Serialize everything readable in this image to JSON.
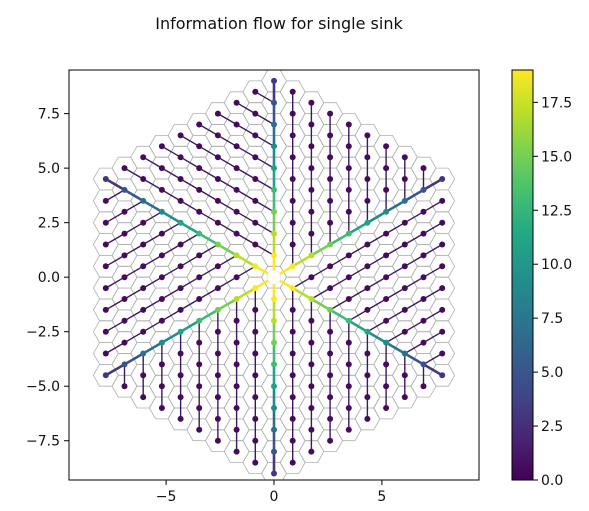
{
  "chart_data": {
    "type": "scatter",
    "title": "Information flow for single sink",
    "xlabel": "",
    "ylabel": "",
    "xlim": [
      -9.5,
      9.5
    ],
    "ylim": [
      -9.3,
      9.5
    ],
    "xticks": [
      -5,
      0,
      5
    ],
    "xtick_labels": [
      "−5",
      "0",
      "5"
    ],
    "yticks": [
      -7.5,
      -5.0,
      -2.5,
      0.0,
      2.5,
      5.0,
      7.5
    ],
    "ytick_labels": [
      "−7.5",
      "−5.0",
      "−2.5",
      "0.0",
      "2.5",
      "5.0",
      "7.5"
    ],
    "grid": false,
    "description_elements": "hexagonal lattice of nodes (radius 9) with edges pointing toward a single sink at the origin; color encodes information flow",
    "sink": [
      0,
      0
    ],
    "hex_radius": 9,
    "colormap": "viridis",
    "colorbar": {
      "min": 0.0,
      "max": 19.0,
      "ticks": [
        0.0,
        2.5,
        5.0,
        7.5,
        10.0,
        12.5,
        15.0,
        17.5
      ],
      "tick_labels": [
        "0.0",
        "2.5",
        "5.0",
        "7.5",
        "10.0",
        "12.5",
        "15.0",
        "17.5"
      ]
    },
    "spokes": [
      {
        "direction_deg": 90,
        "values": [
          19,
          17,
          15,
          13,
          11,
          9,
          7,
          5,
          3
        ]
      },
      {
        "direction_deg": 30,
        "values": [
          19,
          17,
          15,
          13,
          11,
          9,
          7,
          5,
          3
        ]
      },
      {
        "direction_deg": -30,
        "values": [
          19,
          17,
          15,
          13,
          11,
          9,
          7,
          5,
          3
        ]
      },
      {
        "direction_deg": -90,
        "values": [
          19,
          17,
          15,
          13,
          11,
          9,
          7,
          5,
          3
        ]
      },
      {
        "direction_deg": -150,
        "values": [
          19,
          17,
          15,
          13,
          11,
          9,
          7,
          5,
          3
        ]
      },
      {
        "direction_deg": 150,
        "values": [
          19,
          17,
          15,
          13,
          11,
          9,
          7,
          5,
          3
        ]
      }
    ],
    "background_value": 0.6,
    "colors": {
      "node_low": "#440154",
      "node_high": "#fde725",
      "hex_outline": "#b0b0b0",
      "edge": "#3b1a5c"
    }
  }
}
